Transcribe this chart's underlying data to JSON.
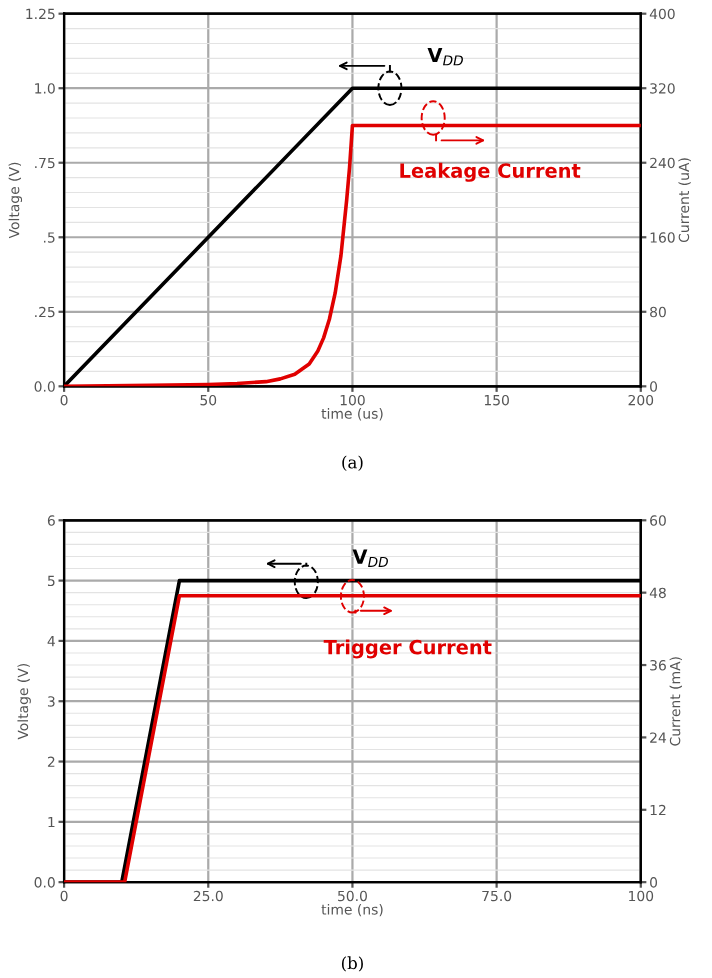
{
  "chart_data": [
    {
      "type": "line",
      "xlabel": "time (us)",
      "ylabel": "Voltage (V)",
      "y2label": "Current (uA)",
      "xlim": [
        0,
        200
      ],
      "xticks": [
        0,
        50,
        100,
        150,
        200
      ],
      "ylim": [
        0,
        1.25
      ],
      "yticks": [
        {
          "value": 0,
          "label": "0.0"
        },
        {
          "value": 0.25,
          "label": ".25"
        },
        {
          "value": 0.5,
          "label": ".5"
        },
        {
          "value": 0.75,
          "label": ".75"
        },
        {
          "value": 1.0,
          "label": "1.0"
        },
        {
          "value": 1.25,
          "label": "1.25"
        }
      ],
      "y2lim": [
        0,
        400
      ],
      "y2ticks": [
        0,
        80,
        160,
        240,
        320,
        400
      ],
      "grid": true,
      "series": [
        {
          "name": "V$_{DD}$",
          "color": "#000000",
          "x": [
            0,
            100,
            200
          ],
          "values": [
            0,
            1.0,
            1.0
          ]
        },
        {
          "name": "Leakage Current",
          "color": "#e00000",
          "axis": "y2",
          "x": [
            0,
            30,
            50,
            60,
            70,
            75,
            80,
            85,
            88,
            90,
            92,
            94,
            96,
            98,
            99,
            100,
            200
          ],
          "values": [
            0,
            1,
            2,
            3,
            5,
            8,
            13,
            24,
            38,
            52,
            72,
            100,
            140,
            200,
            235,
            280,
            280
          ]
        }
      ],
      "annotations": [
        "(a)"
      ]
    },
    {
      "type": "line",
      "xlabel": "time (ns)",
      "ylabel": "Voltage (V)",
      "y2label": "Current (mA)",
      "xlim": [
        0,
        100
      ],
      "xticks": [
        0,
        {
          "value": 25,
          "label": "25.0"
        },
        {
          "value": 50,
          "label": "50.0"
        },
        {
          "value": 75,
          "label": "75.0"
        },
        100
      ],
      "ylim": [
        0,
        6
      ],
      "yticks": [
        {
          "value": 0,
          "label": "0.0"
        },
        1,
        2,
        3,
        4,
        5,
        6
      ],
      "y2lim": [
        0,
        60
      ],
      "y2ticks": [
        0,
        12,
        24,
        36,
        48,
        60
      ],
      "grid": true,
      "series": [
        {
          "name": "V$_{DD}$",
          "color": "#000000",
          "x": [
            0,
            10,
            20,
            100
          ],
          "values": [
            0,
            0,
            5,
            5
          ]
        },
        {
          "name": "Trigger Current",
          "color": "#e00000",
          "axis": "y2",
          "x": [
            0,
            10.5,
            20,
            100
          ],
          "values": [
            0,
            0,
            47.5,
            47.5
          ]
        }
      ],
      "annotations": [
        "(b)"
      ]
    }
  ]
}
